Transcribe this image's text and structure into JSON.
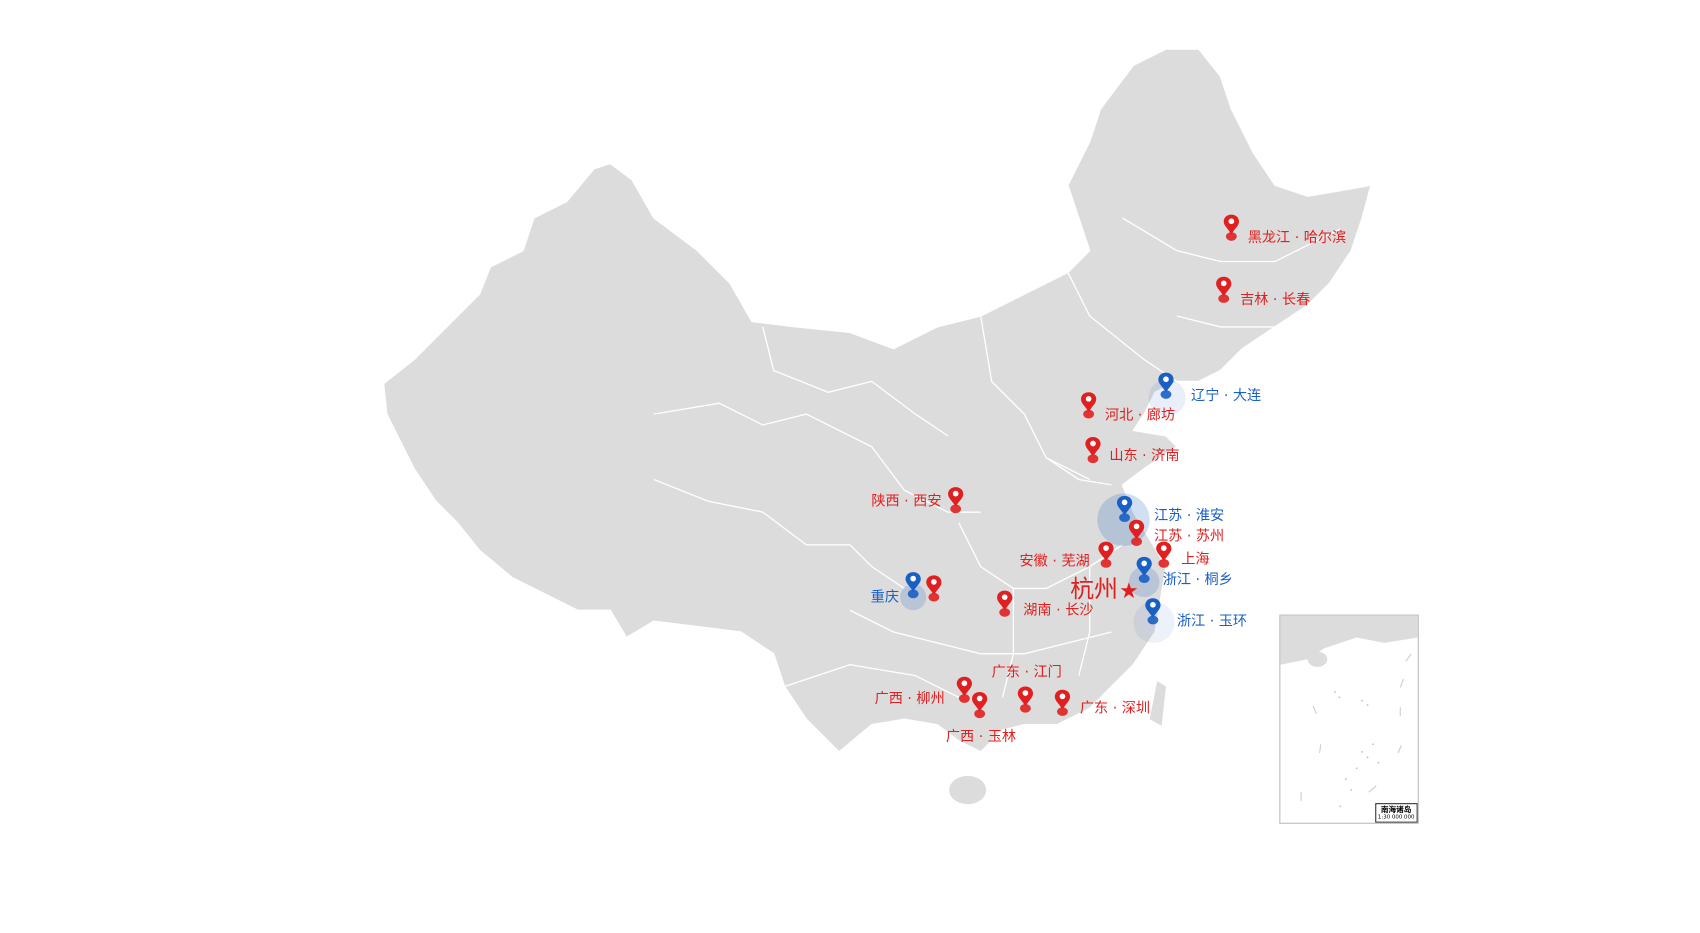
{
  "colors": {
    "land": "#dcdcdc",
    "border": "#ffffff",
    "red_marker": "#e02020",
    "blue_marker": "#1a5fc4"
  },
  "highlight_city": {
    "label": "杭州",
    "icon": "star-icon"
  },
  "markers": [
    {
      "label": "黑龙江 · 哈尔滨",
      "color": "red"
    },
    {
      "label": "吉林 · 长春",
      "color": "red"
    },
    {
      "label": "辽宁 · 大连",
      "color": "blue"
    },
    {
      "label": "河北 · 廊坊",
      "color": "red"
    },
    {
      "label": "山东 · 济南",
      "color": "red"
    },
    {
      "label": "陕西 · 西安",
      "color": "red"
    },
    {
      "label": "江苏 · 淮安",
      "color": "blue"
    },
    {
      "label": "江苏 · 苏州",
      "color": "red"
    },
    {
      "label": "安徽 · 芜湖",
      "color": "red"
    },
    {
      "label": "上海",
      "color": "red"
    },
    {
      "label": "浙江 · 桐乡",
      "color": "blue"
    },
    {
      "label": "重庆",
      "color": "blue"
    },
    {
      "label": "湖南 · 长沙",
      "color": "red"
    },
    {
      "label": "浙江 · 玉环",
      "color": "blue"
    },
    {
      "label": "广东 · 江门",
      "color": "red"
    },
    {
      "label": "广西 · 柳州",
      "color": "red"
    },
    {
      "label": "广西 · 玉林",
      "color": "red"
    },
    {
      "label": "广东 · 深圳",
      "color": "red"
    }
  ],
  "inset": {
    "title": "南海诸岛",
    "scale": "1:30 000 000"
  }
}
